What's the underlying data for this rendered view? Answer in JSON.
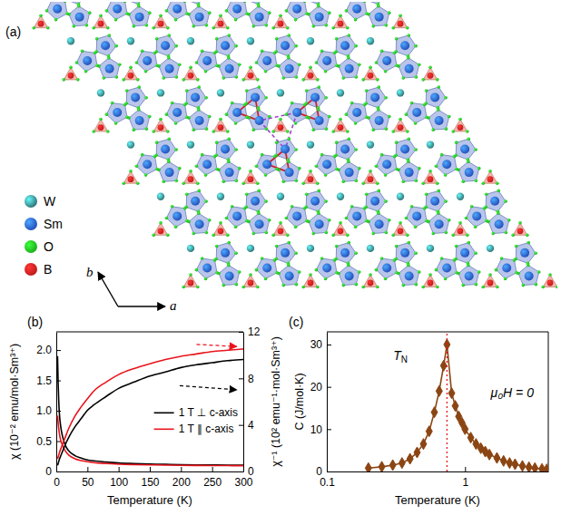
{
  "structure": {
    "panel": "(a)",
    "legend": [
      {
        "name": "W",
        "color": "#3a8c8e"
      },
      {
        "name": "Sm",
        "color": "#2b5fd9"
      },
      {
        "name": "O",
        "color": "#22cc22"
      },
      {
        "name": "B",
        "color": "#e01f1f"
      }
    ],
    "axis_labels": [
      "a",
      "b"
    ]
  },
  "chart_data": [
    {
      "type": "line",
      "panel": "(b)",
      "x_label": "Temperature (K)",
      "y_label": "χ (10⁻² emu/mol·Sm³⁺)",
      "y2_label": "χ⁻¹ (10² emu⁻¹·mol·Sm³⁺)",
      "x": [
        2,
        3,
        4,
        5,
        7,
        10,
        15,
        20,
        30,
        40,
        50,
        60,
        80,
        100,
        125,
        150,
        175,
        200,
        225,
        250,
        275,
        300
      ],
      "xlim": [
        0,
        300
      ],
      "xticks": [
        0,
        50,
        100,
        150,
        200,
        250,
        300
      ],
      "ylim": [
        0,
        2.3
      ],
      "yticks": [
        0,
        0.5,
        {
          "value": 1,
          "label": "1.0"
        },
        1.5,
        {
          "value": 2,
          "label": "2.0"
        }
      ],
      "y2lim": [
        0,
        12
      ],
      "y2ticks": [
        0,
        4,
        8,
        12
      ],
      "legend": "right",
      "series": [
        {
          "name": "1 T ⊥ c-axis",
          "color": "#000000",
          "line_style": "solid",
          "values": [
            1.9,
            1.45,
            1.15,
            0.95,
            0.75,
            0.58,
            0.42,
            0.34,
            0.26,
            0.22,
            0.19,
            0.175,
            0.155,
            0.14,
            0.13,
            0.122,
            0.117,
            0.112,
            0.109,
            0.107,
            0.105,
            0.104
          ]
        },
        {
          "name": "1 T ∥ c-axis",
          "color": "#e8141c",
          "line_style": "solid",
          "values": [
            0.92,
            0.8,
            0.7,
            0.62,
            0.52,
            0.43,
            0.33,
            0.27,
            0.21,
            0.18,
            0.16,
            0.145,
            0.13,
            0.12,
            0.113,
            0.108,
            0.104,
            0.101,
            0.099,
            0.097,
            0.096,
            0.095
          ]
        },
        {
          "name": "1 T ⊥ c-axis",
          "color": "#000000",
          "line_style": "solid",
          "axis": "y2",
          "values": [
            0.53,
            0.69,
            0.87,
            1.05,
            1.33,
            1.72,
            2.38,
            2.94,
            3.85,
            4.55,
            5.26,
            5.71,
            6.45,
            7.14,
            7.69,
            8.2,
            8.55,
            8.93,
            9.17,
            9.35,
            9.52,
            9.62
          ]
        },
        {
          "name": "1 T ∥ c-axis",
          "color": "#e8141c",
          "line_style": "solid",
          "axis": "y2",
          "values": [
            1.09,
            1.25,
            1.43,
            1.61,
            1.92,
            2.33,
            3.03,
            3.7,
            4.76,
            5.56,
            6.25,
            6.9,
            7.69,
            8.33,
            8.85,
            9.26,
            9.62,
            9.9,
            10.1,
            10.31,
            10.42,
            10.53
          ]
        }
      ]
    },
    {
      "type": "line",
      "panel": "(c)",
      "x_label": "Temperature (K)",
      "y_label": "C (J/mol·K)",
      "log": "x",
      "x": [
        0.2,
        0.25,
        0.3,
        0.35,
        0.4,
        0.45,
        0.5,
        0.55,
        0.6,
        0.65,
        0.7,
        0.74,
        0.8,
        0.85,
        0.9,
        0.95,
        1.0,
        1.1,
        1.2,
        1.3,
        1.4,
        1.5,
        1.7,
        1.9,
        2.1,
        2.3,
        2.6,
        2.9,
        3.2,
        3.6,
        3.9
      ],
      "xlim": [
        0.1,
        4
      ],
      "xticks": [
        0.1,
        1
      ],
      "ylim": [
        0,
        33
      ],
      "yticks": [
        0,
        10,
        20,
        30
      ],
      "series": [
        {
          "color": "#8b4513",
          "marker": "diamond",
          "line_style": "solid",
          "values": [
            0.8,
            1.1,
            1.5,
            2.0,
            3.0,
            4.5,
            6.5,
            9.5,
            14,
            19,
            25,
            30,
            18.5,
            15.5,
            13,
            11.5,
            10,
            8,
            6.5,
            5.5,
            4.7,
            4,
            3.2,
            2.5,
            2,
            1.7,
            1.3,
            1,
            0.8,
            0.6,
            0.5
          ]
        }
      ],
      "vline": {
        "x": 0.74,
        "color": "#e8141c",
        "line_style": "dotted"
      },
      "annotations": [
        {
          "text": "T",
          "subscript": "N"
        },
        {
          "text": "μ₀H = 0"
        }
      ]
    }
  ]
}
